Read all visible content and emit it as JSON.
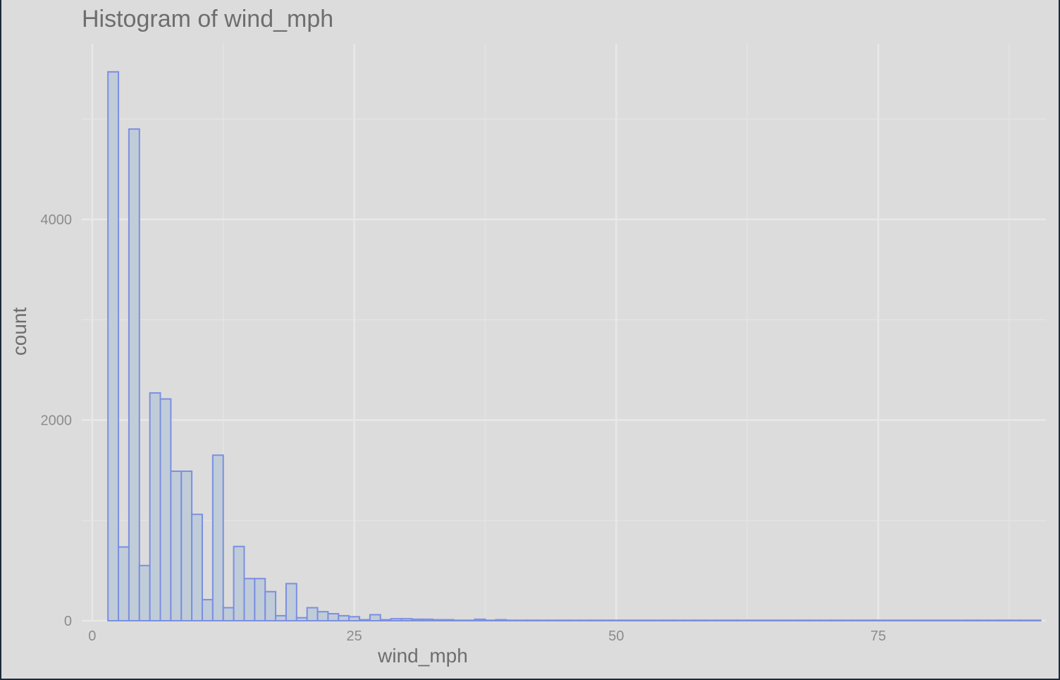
{
  "chart_data": {
    "type": "bar",
    "title": "Histogram of wind_mph",
    "xlabel": "wind_mph",
    "ylabel": "count",
    "xlim": [
      -1,
      91
    ],
    "ylim": [
      0,
      5750
    ],
    "x_ticks": [
      0,
      25,
      50,
      75
    ],
    "x_minor_ticks": [
      12.5,
      37.5,
      62.5,
      87.5
    ],
    "y_ticks": [
      0,
      2000,
      4000
    ],
    "y_minor_ticks": [
      1000,
      3000,
      5000
    ],
    "grid": true,
    "bin_start": 1.5,
    "bin_width": 1,
    "values": [
      5470,
      735,
      4900,
      550,
      2270,
      2210,
      1490,
      1490,
      1060,
      210,
      1650,
      130,
      740,
      420,
      420,
      290,
      50,
      370,
      30,
      130,
      90,
      70,
      50,
      40,
      10,
      60,
      10,
      20,
      20,
      15,
      15,
      10,
      10,
      5,
      5,
      15,
      5,
      10,
      5,
      5,
      5,
      5,
      5,
      5,
      5,
      5,
      5,
      5,
      5,
      5,
      5,
      5,
      5,
      5,
      5,
      5,
      5,
      5,
      5,
      5,
      5,
      5,
      5,
      5,
      5,
      5,
      5,
      5,
      5,
      5,
      5,
      5,
      5,
      5,
      5,
      5,
      5,
      5,
      5,
      5,
      5,
      5,
      5,
      5,
      5,
      5,
      5,
      5,
      5
    ],
    "colors": {
      "bar_fill": "#c0ccd8",
      "bar_stroke": "#7b8fe0",
      "grid_major": "#e8e8e8",
      "grid_minor": "#e3e3e3"
    }
  }
}
